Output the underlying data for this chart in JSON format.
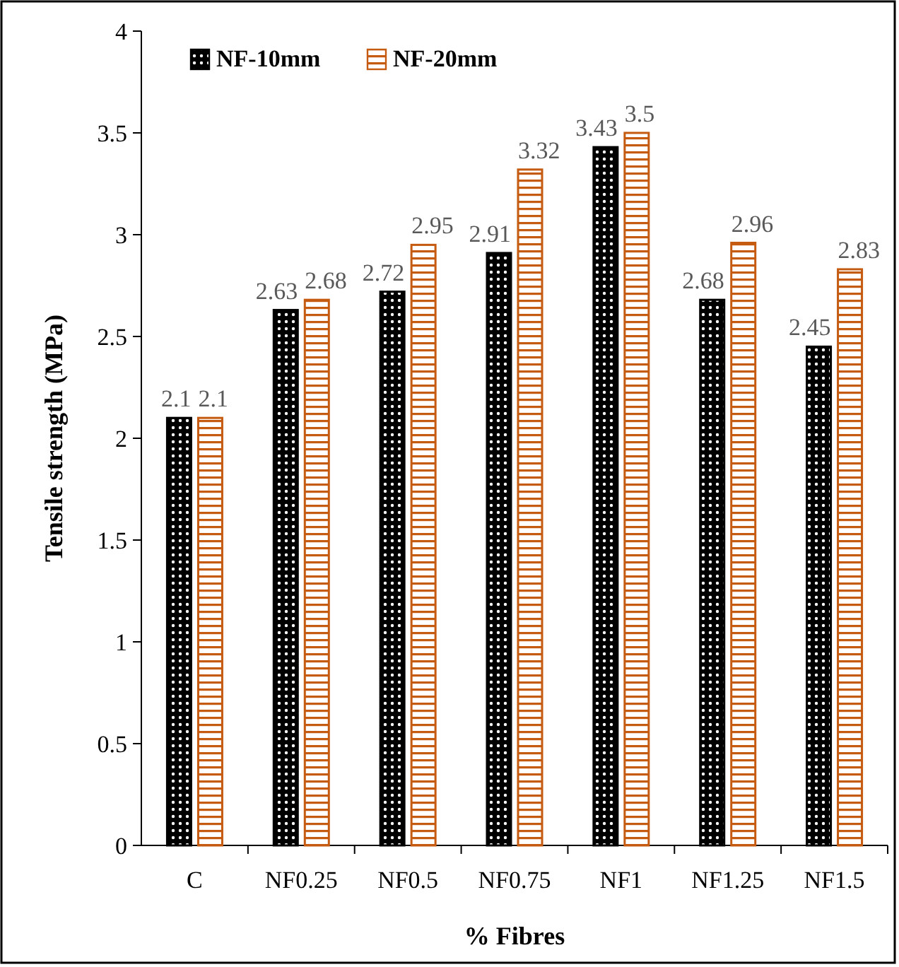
{
  "chart_data": {
    "type": "bar",
    "xlabel": "% Fibres",
    "ylabel": "Tensile strength (MPa)",
    "categories": [
      "C",
      "NF0.25",
      "NF0.5",
      "NF0.75",
      "NF1",
      "NF1.25",
      "NF1.5"
    ],
    "series": [
      {
        "name": "NF-10mm",
        "color": "#000000",
        "values": [
          2.1,
          2.63,
          2.72,
          2.91,
          3.43,
          2.68,
          2.45
        ]
      },
      {
        "name": "NF-20mm",
        "color": "#c55a11",
        "values": [
          2.1,
          2.68,
          2.95,
          3.32,
          3.5,
          2.96,
          2.83
        ]
      }
    ],
    "ylim": [
      0,
      4
    ],
    "yticks": [
      0,
      0.5,
      1,
      1.5,
      2,
      2.5,
      3,
      3.5,
      4
    ],
    "data_labels": true,
    "grid": false,
    "legend": "top left"
  }
}
